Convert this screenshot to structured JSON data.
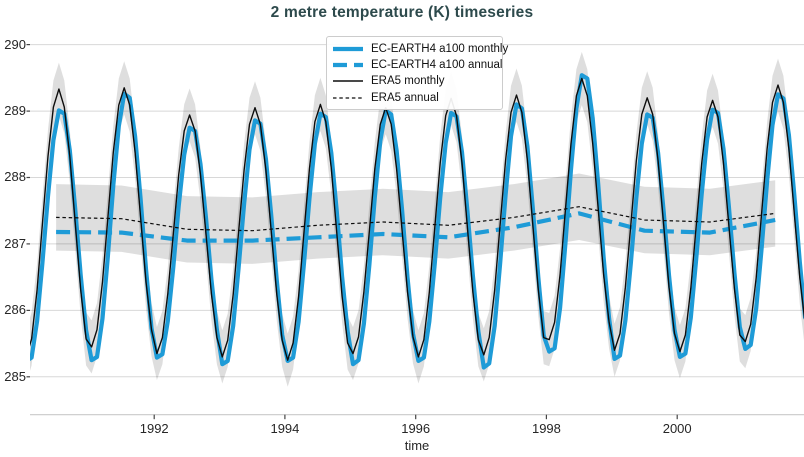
{
  "title": "2 metre temperature (K) timeseries",
  "colors": {
    "title_teal": "#2d4a4c",
    "model_blue": "#1e9bd7",
    "era5_black": "#0d0d0d",
    "band_gray": "#000000",
    "band_opacity": 0.13,
    "grid_gray": "#d8d8d8",
    "axis_line_gray": "#c9c9c9",
    "tick_text": "#262626"
  },
  "axes": {
    "xlabel": "time",
    "ylabel": "",
    "x_ticks": [
      1992,
      1994,
      1996,
      1998,
      2000
    ],
    "y_ticks": [
      285,
      286,
      287,
      288,
      289,
      290
    ],
    "xlim": [
      1990.1,
      2001.94
    ],
    "ylim": [
      284.43,
      290.25
    ],
    "grid": "horizontal-only"
  },
  "legend": {
    "position": "upper-left-of-center",
    "items": [
      {
        "label": "EC-EARTH4 a100 monthly"
      },
      {
        "label": "EC-EARTH4 a100 annual"
      },
      {
        "label": "ERA5 monthly"
      },
      {
        "label": "ERA5 annual"
      }
    ]
  },
  "chart_data": {
    "type": "line",
    "title": "2 metre temperature (K) timeseries",
    "xlabel": "time",
    "ylabel": "2 metre temperature (K)",
    "xlim": [
      1990.1,
      2001.94
    ],
    "ylim": [
      284.43,
      290.25
    ],
    "legend_position": "upper center-left",
    "years": [
      1990,
      1991,
      1992,
      1993,
      1994,
      1995,
      1996,
      1997,
      1998,
      1999,
      2000,
      2001
    ],
    "series": [
      {
        "name": "EC-EARTH4 a100 monthly",
        "kind": "monthly",
        "color_key": "model_blue",
        "values_by_year": [
          [
            285.24,
            285.29,
            285.84,
            286.73,
            287.72,
            288.56,
            289.01,
            288.96,
            288.41,
            287.53,
            286.53,
            285.7
          ],
          [
            285.25,
            285.3,
            285.88,
            286.82,
            287.88,
            288.77,
            289.26,
            289.2,
            288.62,
            287.68,
            286.62,
            285.73
          ],
          [
            285.29,
            285.34,
            285.84,
            286.65,
            287.57,
            288.34,
            288.75,
            288.7,
            288.2,
            287.39,
            286.47,
            285.71
          ],
          [
            285.19,
            285.24,
            285.77,
            286.64,
            287.6,
            288.42,
            288.86,
            288.81,
            288.28,
            287.42,
            286.45,
            285.63
          ],
          [
            285.24,
            285.29,
            285.83,
            286.71,
            287.69,
            288.51,
            288.96,
            288.91,
            288.37,
            287.5,
            286.51,
            285.69
          ],
          [
            285.19,
            285.25,
            285.8,
            286.69,
            287.7,
            288.55,
            289.01,
            288.95,
            288.41,
            287.51,
            286.5,
            285.65
          ],
          [
            285.24,
            285.29,
            285.83,
            286.71,
            287.69,
            288.52,
            288.97,
            288.92,
            288.38,
            287.5,
            286.52,
            285.69
          ],
          [
            285.14,
            285.2,
            285.77,
            286.7,
            287.74,
            288.62,
            289.1,
            289.04,
            288.47,
            287.54,
            286.5,
            285.62
          ],
          [
            285.38,
            285.43,
            286.04,
            287.02,
            288.12,
            289.04,
            289.54,
            289.49,
            288.89,
            287.9,
            286.8,
            285.88
          ],
          [
            285.27,
            285.32,
            285.85,
            286.72,
            287.69,
            288.51,
            288.95,
            288.9,
            288.37,
            287.5,
            286.53,
            285.71
          ],
          [
            285.3,
            285.35,
            285.89,
            286.77,
            287.75,
            288.57,
            289.02,
            288.97,
            288.43,
            287.56,
            286.57,
            285.75
          ],
          [
            285.42,
            285.48,
            286.03,
            286.93,
            287.94,
            288.79,
            289.25,
            289.19,
            288.64,
            287.74,
            286.73,
            285.88
          ]
        ]
      },
      {
        "name": "EC-EARTH4 a100 annual",
        "kind": "annual",
        "color_key": "model_blue",
        "values": [
          287.18,
          287.17,
          287.05,
          287.05,
          287.1,
          287.15,
          287.1,
          287.25,
          287.46,
          287.2,
          287.17,
          287.36
        ]
      },
      {
        "name": "ERA5 monthly",
        "kind": "monthly",
        "color_key": "era5_black",
        "values_by_year": [
          [
            285.3,
            285.57,
            286.31,
            287.32,
            288.32,
            289.06,
            289.33,
            289.06,
            288.32,
            287.32,
            286.31,
            285.57
          ],
          [
            285.45,
            285.71,
            286.43,
            287.4,
            288.38,
            289.09,
            289.35,
            289.09,
            288.38,
            287.4,
            286.43,
            285.71
          ],
          [
            285.35,
            285.59,
            286.25,
            287.15,
            288.04,
            288.7,
            288.94,
            288.7,
            288.04,
            287.15,
            286.25,
            285.59
          ],
          [
            285.3,
            285.55,
            286.24,
            287.18,
            288.11,
            288.8,
            289.05,
            288.8,
            288.11,
            287.18,
            286.24,
            285.55
          ],
          [
            285.25,
            285.51,
            286.21,
            287.18,
            288.14,
            288.84,
            289.1,
            288.84,
            288.14,
            287.18,
            286.21,
            285.51
          ],
          [
            285.35,
            285.6,
            286.28,
            287.2,
            288.13,
            288.8,
            289.05,
            288.8,
            288.13,
            287.2,
            286.28,
            285.6
          ],
          [
            285.3,
            285.56,
            286.27,
            287.25,
            288.22,
            288.93,
            289.19,
            288.93,
            288.22,
            287.25,
            286.27,
            285.56
          ],
          [
            285.33,
            285.59,
            286.31,
            287.29,
            288.26,
            288.98,
            289.24,
            288.98,
            288.26,
            287.29,
            286.31,
            285.59
          ],
          [
            285.56,
            285.82,
            286.54,
            287.53,
            288.51,
            289.23,
            289.49,
            289.23,
            288.51,
            287.53,
            286.54,
            285.82
          ],
          [
            285.4,
            285.65,
            286.35,
            287.3,
            288.25,
            288.95,
            289.2,
            288.95,
            288.25,
            287.3,
            286.35,
            285.65
          ],
          [
            285.38,
            285.63,
            286.33,
            287.27,
            288.21,
            288.91,
            289.16,
            288.91,
            288.21,
            287.27,
            286.33,
            285.63
          ],
          [
            285.53,
            285.79,
            286.49,
            287.46,
            288.43,
            289.13,
            289.39,
            289.13,
            288.43,
            287.46,
            286.49,
            285.79
          ]
        ]
      },
      {
        "name": "ERA5 annual",
        "kind": "annual",
        "color_key": "era5_black",
        "values": [
          287.4,
          287.38,
          287.22,
          287.2,
          287.28,
          287.33,
          287.28,
          287.4,
          287.56,
          287.36,
          287.33,
          287.46
        ]
      }
    ],
    "bands": [
      {
        "around": "ERA5 monthly",
        "halfwidth": 0.4
      },
      {
        "around": "ERA5 annual",
        "halfwidth": 0.5
      }
    ]
  }
}
